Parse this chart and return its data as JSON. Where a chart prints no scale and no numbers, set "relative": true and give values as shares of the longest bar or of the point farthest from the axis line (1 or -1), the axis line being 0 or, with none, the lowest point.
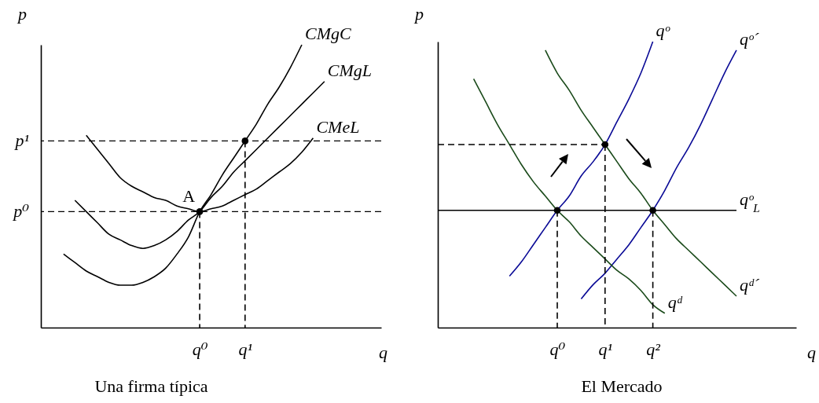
{
  "chart_data": [
    {
      "type": "line",
      "title": "Una firma típica",
      "xlabel": "q",
      "ylabel": "p",
      "relative": true,
      "line_style": "solid",
      "categories": [
        null,
        null,
        null,
        null,
        null,
        null,
        null,
        null,
        null,
        null,
        null,
        null,
        null,
        null,
        "q⁰",
        null,
        null,
        null,
        "q¹",
        null,
        null,
        null,
        null,
        null,
        null,
        null,
        null,
        null,
        null,
        null,
        null
      ],
      "series": [
        {
          "name": "CMgC",
          "color": "#000000",
          "values": [
            null,
            null,
            0.26,
            0.23,
            0.2,
            0.18,
            0.16,
            0.15,
            0.15,
            0.16,
            0.18,
            0.21,
            0.26,
            0.32,
            0.41,
            0.47,
            0.54,
            0.6,
            0.66,
            0.72,
            0.79,
            0.85,
            0.92,
            1,
            null,
            null,
            null,
            null,
            null,
            null,
            null
          ]
        },
        {
          "name": "CMgL",
          "color": "#000000",
          "values": [
            null,
            null,
            null,
            0.45,
            0.41,
            0.37,
            0.33,
            0.31,
            0.29,
            0.28,
            0.29,
            0.31,
            0.34,
            0.38,
            0.41,
            0.46,
            0.5,
            0.55,
            0.59,
            0.63,
            0.67,
            0.71,
            0.75,
            0.79,
            0.83,
            0.87,
            null,
            null,
            null,
            null,
            null
          ]
        },
        {
          "name": "CMeL",
          "color": "#000000",
          "values": [
            null,
            null,
            null,
            null,
            0.68,
            0.63,
            0.58,
            0.53,
            0.5,
            0.48,
            0.46,
            0.45,
            0.43,
            0.42,
            0.41,
            0.42,
            0.43,
            0.45,
            0.47,
            0.49,
            0.52,
            0.55,
            0.58,
            0.62,
            0.67,
            null,
            null,
            null,
            null,
            null,
            null
          ]
        },
        {
          "type": "lollipop",
          "color": "#000000",
          "line_style": "dashed",
          "marker": "circle",
          "values": [
            null,
            null,
            null,
            null,
            null,
            null,
            null,
            null,
            null,
            null,
            null,
            null,
            null,
            null,
            0.41,
            null,
            null,
            null,
            0.66,
            null,
            null,
            null,
            null,
            null,
            null,
            null,
            null,
            null,
            null,
            null,
            null
          ]
        }
      ],
      "ref_lines": [
        {
          "axis": "y",
          "value": 0.41,
          "label": "p⁰",
          "color": "#000000",
          "line_style": "dashed"
        },
        {
          "axis": "y",
          "value": 0.66,
          "label": "p¹",
          "color": "#000000",
          "line_style": "dashed"
        }
      ],
      "annotations": [
        {
          "text": "A",
          "x": "q⁰",
          "y": 0.41
        }
      ]
    },
    {
      "type": "line",
      "title": "El Mercado",
      "xlabel": "q",
      "ylabel": "p",
      "relative": true,
      "line_style": "solid",
      "categories": [
        null,
        null,
        null,
        null,
        null,
        null,
        null,
        null,
        null,
        null,
        "q⁰",
        null,
        null,
        null,
        "q¹",
        null,
        null,
        null,
        "q²",
        null,
        null,
        null,
        null,
        null,
        null,
        null,
        null,
        null,
        null,
        null,
        null
      ],
      "series": [
        {
          "name": "qᵒ",
          "color": "#0a0a96",
          "values": [
            null,
            null,
            null,
            null,
            null,
            null,
            0.18,
            0.23,
            0.29,
            0.35,
            0.41,
            0.46,
            0.53,
            0.58,
            0.64,
            0.72,
            0.8,
            0.89,
            1,
            null,
            null,
            null,
            null,
            null,
            null,
            null,
            null,
            null,
            null,
            null,
            null
          ]
        },
        {
          "name": "qᵒ´",
          "color": "#0a0a96",
          "values": [
            null,
            null,
            null,
            null,
            null,
            null,
            null,
            null,
            null,
            null,
            null,
            null,
            0.1,
            0.15,
            0.19,
            0.24,
            0.29,
            0.35,
            0.41,
            0.48,
            0.56,
            0.63,
            0.71,
            0.8,
            0.89,
            0.97,
            null,
            null,
            null,
            null,
            null
          ]
        },
        {
          "name": "qᵒ$_{L}$",
          "color": "#000000",
          "values": [
            0.41,
            0.41,
            0.41,
            0.41,
            0.41,
            0.41,
            0.41,
            0.41,
            0.41,
            0.41,
            0.41,
            0.41,
            0.41,
            0.41,
            0.41,
            0.41,
            0.41,
            0.41,
            0.41,
            0.41,
            0.41,
            0.41,
            0.41,
            0.41,
            0.41,
            0.41,
            null,
            null,
            null,
            null,
            null
          ]
        },
        {
          "name": "qᵈ",
          "color": "#1a4a1a",
          "values": [
            null,
            null,
            null,
            0.87,
            0.79,
            0.71,
            0.64,
            0.57,
            0.51,
            0.46,
            0.41,
            0.37,
            0.32,
            0.28,
            0.24,
            0.2,
            0.17,
            0.13,
            0.08,
            0.05,
            null,
            null,
            null,
            null,
            null,
            null,
            null,
            null,
            null,
            null,
            null
          ]
        },
        {
          "name": "qᵈ´",
          "color": "#1a4a1a",
          "values": [
            null,
            null,
            null,
            null,
            null,
            null,
            null,
            null,
            null,
            0.97,
            0.89,
            0.83,
            0.76,
            0.7,
            0.64,
            0.58,
            0.52,
            0.47,
            0.41,
            0.36,
            0.31,
            0.27,
            0.23,
            0.19,
            0.15,
            0.11,
            null,
            null,
            null,
            null,
            null
          ]
        },
        {
          "color": "#000000",
          "line_style": "dashed",
          "values": [
            0.64,
            0.64,
            0.64,
            0.64,
            0.64,
            0.64,
            0.64,
            0.64,
            0.64,
            0.64,
            0.64,
            0.64,
            0.64,
            0.64,
            0.64,
            null,
            null,
            null,
            null,
            null,
            null,
            null,
            null,
            null,
            null,
            null,
            null,
            null,
            null,
            null,
            null
          ]
        },
        {
          "type": "lollipop",
          "color": "#000000",
          "line_style": "dashed",
          "marker": "circle",
          "values": [
            null,
            null,
            null,
            null,
            null,
            null,
            null,
            null,
            null,
            null,
            0.41,
            null,
            null,
            null,
            0.64,
            null,
            null,
            null,
            0.41,
            null,
            null,
            null,
            null,
            null,
            null,
            null,
            null,
            null,
            null,
            null,
            null
          ]
        }
      ]
    }
  ]
}
